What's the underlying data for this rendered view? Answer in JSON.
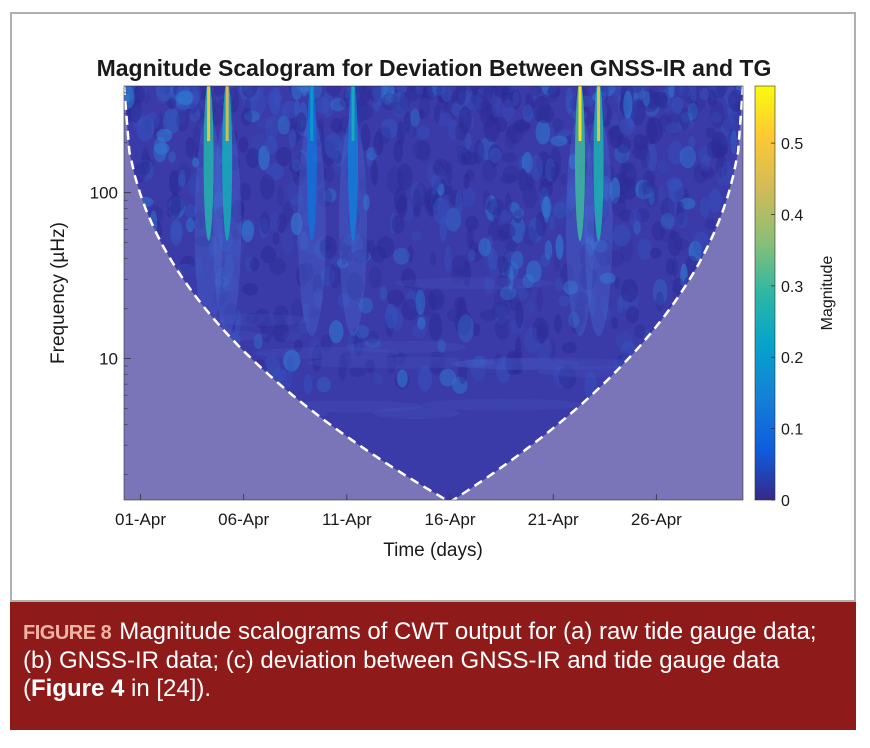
{
  "chart_data": {
    "type": "heatmap",
    "title": "Magnitude Scalogram for Deviation Between GNSS-IR and TG",
    "xlabel": "Time (days)",
    "ylabel": "Frequency (µHz)",
    "x_ticks": [
      "01-Apr",
      "06-Apr",
      "11-Apr",
      "16-Apr",
      "21-Apr",
      "26-Apr"
    ],
    "x_tick_days": [
      1,
      6,
      11,
      16,
      21,
      26
    ],
    "x_range_days": [
      0.2,
      30.2
    ],
    "y_scale": "log",
    "y_ticks": [
      "10",
      "100"
    ],
    "y_tick_values": [
      10,
      100
    ],
    "y_range": [
      1.4,
      440
    ],
    "colorbar": {
      "label": "Magnitude",
      "range": [
        0,
        0.58
      ],
      "ticks": [
        "0",
        "0.1",
        "0.2",
        "0.3",
        "0.4",
        "0.5"
      ],
      "tick_values": [
        0,
        0.1,
        0.2,
        0.3,
        0.4,
        0.5
      ],
      "colormap": "parula"
    },
    "peaks": [
      {
        "day": 4.3,
        "magnitude": 0.5
      },
      {
        "day": 5.2,
        "magnitude": 0.45
      },
      {
        "day": 9.3,
        "magnitude": 0.2
      },
      {
        "day": 11.3,
        "magnitude": 0.25
      },
      {
        "day": 22.3,
        "magnitude": 0.55
      },
      {
        "day": 23.2,
        "magnitude": 0.48
      }
    ],
    "cone_of_influence": "dashed white line; region outside shaded",
    "background_magnitude": 0.02
  },
  "caption": {
    "label": "FIGURE 8",
    "text_before": "Magnitude scalograms of CWT output for (a) raw tide gauge data; (b) GNSS-IR data; (c) deviation between GNSS-IR and tide gauge data (",
    "ref_bold": "Figure 4",
    "text_after": " in [24])."
  },
  "colors": {
    "caption_background": "#8e1b1a",
    "caption_label": "#f3b4a6",
    "coi_shade": "#7a74b8",
    "plot_background": "#3a3aa8"
  }
}
